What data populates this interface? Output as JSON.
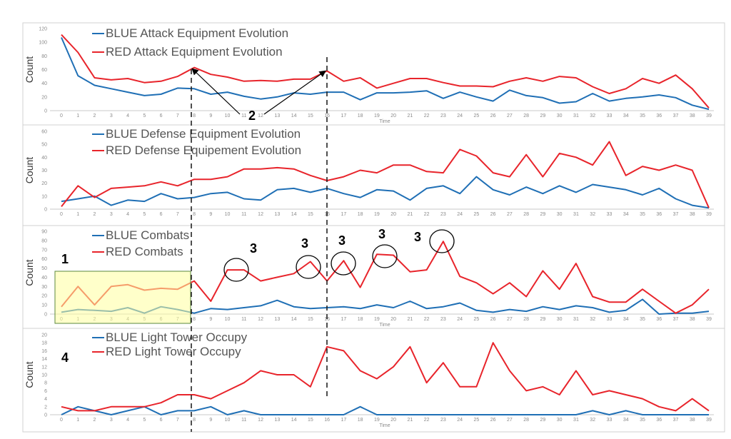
{
  "figure": {
    "colors": {
      "blue": "#1f6fb5",
      "red": "#e8242b",
      "highlight_fill": "#ffff9e",
      "highlight_border": "#5b8a3c"
    },
    "annotations": {
      "label_1": "1",
      "label_2": "2",
      "label_3": "3",
      "label_4": "4"
    }
  },
  "chart_data": [
    {
      "type": "line",
      "ylabel": "Count",
      "xlabel": "Time",
      "ylim": [
        0,
        120
      ],
      "yticks": [
        0,
        20,
        40,
        60,
        80,
        100,
        120
      ],
      "x": [
        0,
        1,
        2,
        3,
        4,
        5,
        6,
        7,
        8,
        9,
        10,
        11,
        12,
        13,
        14,
        15,
        16,
        17,
        18,
        19,
        20,
        21,
        22,
        23,
        24,
        25,
        26,
        27,
        28,
        29,
        30,
        31,
        32,
        33,
        34,
        35,
        36,
        37,
        38,
        39
      ],
      "series": [
        {
          "name": "BLUE Attack Equipment Evolution",
          "color": "#1f6fb5",
          "values": [
            107,
            51,
            37,
            32,
            27,
            22,
            24,
            33,
            32,
            24,
            27,
            21,
            17,
            20,
            26,
            24,
            27,
            27,
            16,
            26,
            26,
            27,
            29,
            18,
            27,
            20,
            14,
            30,
            22,
            19,
            11,
            13,
            25,
            14,
            18,
            20,
            23,
            19,
            8,
            2
          ]
        },
        {
          "name": "RED Attack Equipment Evolution",
          "color": "#e8242b",
          "values": [
            111,
            85,
            48,
            45,
            47,
            41,
            43,
            50,
            63,
            53,
            49,
            43,
            44,
            43,
            46,
            46,
            58,
            43,
            48,
            33,
            40,
            47,
            47,
            41,
            36,
            36,
            35,
            43,
            48,
            43,
            50,
            48,
            35,
            25,
            32,
            47,
            40,
            52,
            32,
            4
          ]
        }
      ]
    },
    {
      "type": "line",
      "ylabel": "Count",
      "xlabel": "",
      "ylim": [
        0,
        60
      ],
      "yticks": [
        0,
        10,
        20,
        30,
        40,
        50,
        60
      ],
      "x": [
        0,
        1,
        2,
        3,
        4,
        5,
        6,
        7,
        8,
        9,
        10,
        11,
        12,
        13,
        14,
        15,
        16,
        17,
        18,
        19,
        20,
        21,
        22,
        23,
        24,
        25,
        26,
        27,
        28,
        29,
        30,
        31,
        32,
        33,
        34,
        35,
        36,
        37,
        38,
        39
      ],
      "series": [
        {
          "name": "BLUE Defense Equipment Evolution",
          "color": "#1f6fb5",
          "values": [
            6,
            8,
            10,
            3,
            7,
            6,
            12,
            8,
            9,
            12,
            13,
            8,
            7,
            15,
            16,
            13,
            16,
            12,
            9,
            15,
            14,
            7,
            16,
            18,
            12,
            25,
            15,
            11,
            17,
            12,
            18,
            13,
            19,
            17,
            15,
            11,
            16,
            8,
            3,
            1
          ]
        },
        {
          "name": "RED Defense Equipement Evolution",
          "color": "#e8242b",
          "values": [
            2,
            18,
            9,
            16,
            17,
            18,
            21,
            18,
            23,
            23,
            25,
            31,
            31,
            32,
            31,
            26,
            22,
            25,
            30,
            28,
            34,
            34,
            29,
            28,
            46,
            41,
            28,
            25,
            42,
            25,
            43,
            40,
            34,
            52,
            26,
            33,
            30,
            34,
            30,
            1
          ]
        }
      ]
    },
    {
      "type": "line",
      "ylabel": "Count",
      "xlabel": "Time",
      "ylim": [
        0,
        90
      ],
      "yticks": [
        0,
        10,
        20,
        30,
        40,
        50,
        60,
        70,
        80,
        90
      ],
      "x": [
        0,
        1,
        2,
        3,
        4,
        5,
        6,
        7,
        8,
        9,
        10,
        11,
        12,
        13,
        14,
        15,
        16,
        17,
        18,
        19,
        20,
        21,
        22,
        23,
        24,
        25,
        26,
        27,
        28,
        29,
        30,
        31,
        32,
        33,
        34,
        35,
        36,
        37,
        38,
        39
      ],
      "series": [
        {
          "name": "BLUE Combats",
          "color": "#1f6fb5",
          "values": [
            2,
            5,
            4,
            3,
            7,
            1,
            8,
            5,
            1,
            6,
            5,
            7,
            9,
            15,
            8,
            6,
            7,
            8,
            6,
            10,
            7,
            14,
            6,
            8,
            12,
            4,
            2,
            5,
            3,
            8,
            5,
            9,
            7,
            2,
            4,
            16,
            0,
            1,
            1,
            3
          ]
        },
        {
          "name": "RED Combats",
          "color": "#e8242b",
          "values": [
            8,
            30,
            10,
            30,
            32,
            26,
            28,
            27,
            36,
            14,
            48,
            48,
            36,
            40,
            44,
            57,
            36,
            58,
            29,
            65,
            64,
            46,
            48,
            79,
            41,
            34,
            22,
            34,
            19,
            47,
            27,
            55,
            19,
            13,
            13,
            27,
            14,
            1,
            10,
            27
          ]
        }
      ]
    },
    {
      "type": "line",
      "ylabel": "Count",
      "xlabel": "Time",
      "ylim": [
        0,
        20
      ],
      "yticks": [
        0,
        2,
        4,
        6,
        8,
        10,
        12,
        14,
        16,
        18,
        20
      ],
      "x": [
        0,
        1,
        2,
        3,
        4,
        5,
        6,
        7,
        8,
        9,
        10,
        11,
        12,
        13,
        14,
        15,
        16,
        17,
        18,
        19,
        20,
        21,
        22,
        23,
        24,
        25,
        26,
        27,
        28,
        29,
        30,
        31,
        32,
        33,
        34,
        35,
        36,
        37,
        38,
        39
      ],
      "series": [
        {
          "name": "BLUE Light Tower Occupy",
          "color": "#1f6fb5",
          "values": [
            0,
            2,
            1,
            0,
            1,
            2,
            0,
            1,
            1,
            2,
            0,
            1,
            0,
            0,
            0,
            0,
            0,
            0,
            2,
            0,
            0,
            0,
            0,
            0,
            0,
            0,
            0,
            0,
            0,
            0,
            0,
            0,
            1,
            0,
            1,
            0,
            0,
            0,
            0,
            0
          ]
        },
        {
          "name": "RED Light Tower Occupy",
          "color": "#e8242b",
          "values": [
            2,
            1,
            1,
            2,
            2,
            2,
            3,
            5,
            5,
            4,
            6,
            8,
            11,
            10,
            10,
            7,
            17,
            16,
            11,
            9,
            12,
            17,
            8,
            13,
            7,
            7,
            18,
            11,
            6,
            7,
            5,
            11,
            5,
            6,
            5,
            4,
            2,
            1,
            4,
            1
          ]
        }
      ]
    }
  ]
}
